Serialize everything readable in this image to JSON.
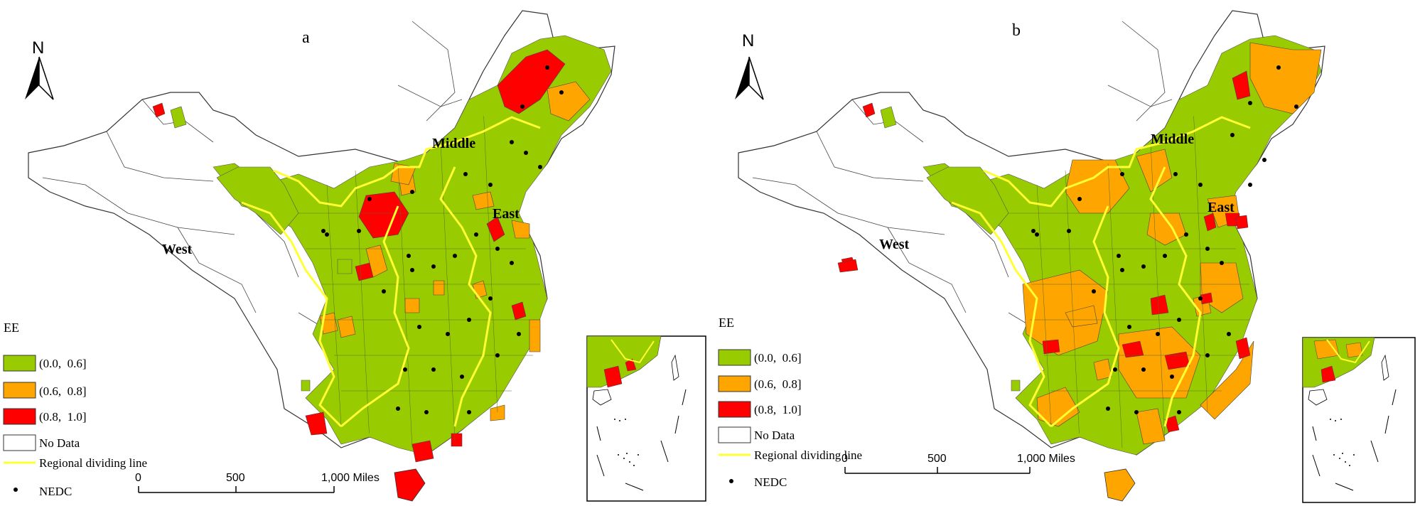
{
  "colors": {
    "low": "#99CC00",
    "mid": "#FFA500",
    "high": "#FF0000",
    "nodata": "#FFFFFF",
    "divider": "#FFFF33",
    "border": "#333333"
  },
  "panels": [
    {
      "id": "a",
      "label": "a",
      "north": "N",
      "regions": {
        "middle": "Middle",
        "east": "East",
        "west": "West"
      },
      "legend": {
        "title": "EE",
        "items": [
          "(0.0,  0.6]",
          "(0.6,  0.8]",
          "(0.8,  1.0]",
          "No Data"
        ],
        "line": "Regional dividing line",
        "point": "NEDC"
      },
      "scale": {
        "ticks": [
          "0",
          "500",
          "1,000 Miles"
        ]
      }
    },
    {
      "id": "b",
      "label": "b",
      "north": "N",
      "regions": {
        "middle": "Middle",
        "east": "East",
        "west": "West"
      },
      "legend": {
        "title": "EE",
        "items": [
          "(0.0,  0.6]",
          "(0.6,  0.8]",
          "(0.8,  1.0]",
          "No Data"
        ],
        "line": "Regional dividing line",
        "point": "NEDC"
      },
      "scale": {
        "ticks": [
          "0",
          "500",
          "1,000 Miles"
        ]
      }
    }
  ]
}
